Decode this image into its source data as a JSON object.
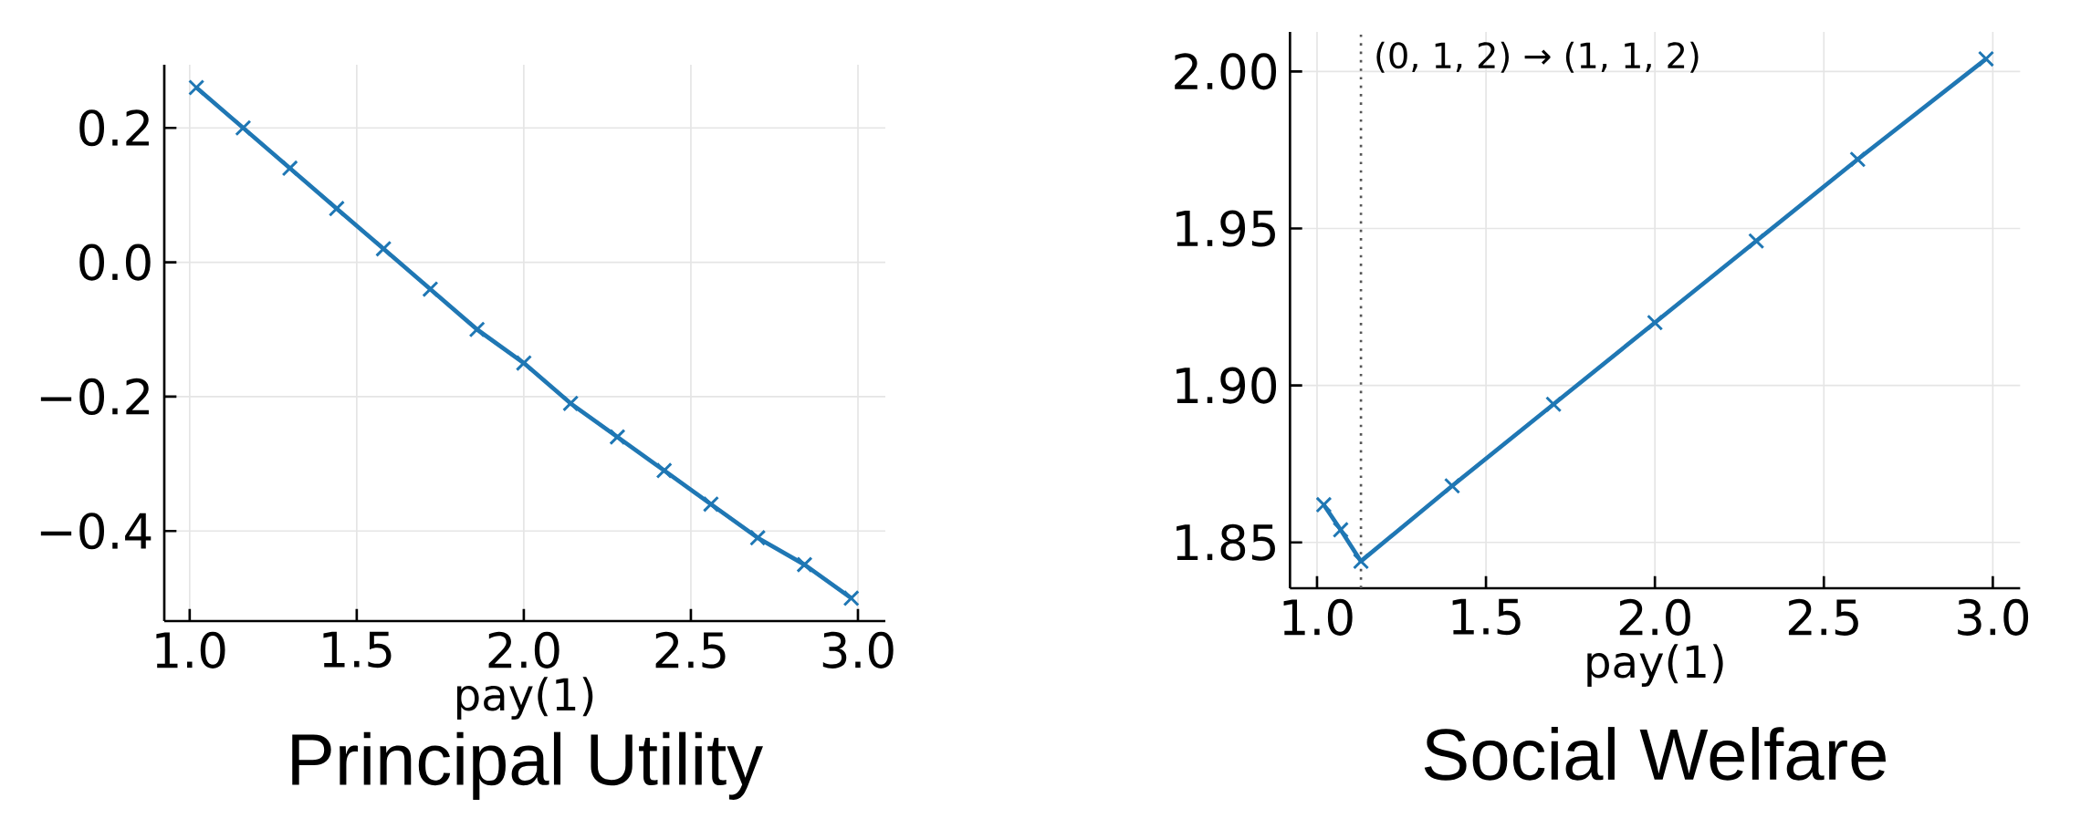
{
  "chart_data": [
    {
      "type": "line",
      "title": "Principal Utility",
      "xlabel": "pay(1)",
      "color": "#1f77b4",
      "marker": "cross",
      "line_style": "solid",
      "grid": true,
      "x": [
        1.02,
        1.16,
        1.3,
        1.44,
        1.58,
        1.72,
        1.86,
        2.0,
        2.14,
        2.28,
        2.42,
        2.56,
        2.7,
        2.84,
        2.98
      ],
      "values": [
        0.26,
        0.2,
        0.14,
        0.08,
        0.02,
        -0.04,
        -0.1,
        -0.15,
        -0.21,
        -0.26,
        -0.31,
        -0.36,
        -0.41,
        -0.45,
        -0.5
      ],
      "xlim": [
        0.924,
        3.082
      ],
      "ylim": [
        -0.534,
        0.294
      ],
      "xticks": [
        {
          "value": 1,
          "label": "1.0"
        },
        {
          "value": 1.5,
          "label": "1.5"
        },
        {
          "value": 2,
          "label": "2.0"
        },
        {
          "value": 2.5,
          "label": "2.5"
        },
        {
          "value": 3,
          "label": "3.0"
        }
      ],
      "yticks": [
        {
          "value": -0.4,
          "label": "−0.4"
        },
        {
          "value": -0.2,
          "label": "−0.2"
        },
        {
          "value": 0,
          "label": "0.0"
        },
        {
          "value": 0.2,
          "label": "0.2"
        }
      ]
    },
    {
      "type": "line",
      "title": "Social Welfare",
      "xlabel": "pay(1)",
      "color": "#1f77b4",
      "marker": "cross",
      "line_style": "solid",
      "grid": true,
      "x": [
        1.02,
        1.07,
        1.13,
        1.4,
        1.7,
        2.0,
        2.3,
        2.6,
        2.98
      ],
      "values": [
        1.862,
        1.854,
        1.844,
        1.868,
        1.894,
        1.92,
        1.946,
        1.972,
        2.004
      ],
      "xlim": [
        0.92,
        3.081
      ],
      "ylim": [
        1.8354,
        2.0126
      ],
      "xticks": [
        {
          "value": 1,
          "label": "1.0"
        },
        {
          "value": 1.5,
          "label": "1.5"
        },
        {
          "value": 2,
          "label": "2.0"
        },
        {
          "value": 2.5,
          "label": "2.5"
        },
        {
          "value": 3,
          "label": "3.0"
        }
      ],
      "yticks": [
        {
          "value": 1.85,
          "label": "1.85"
        },
        {
          "value": 1.9,
          "label": "1.90"
        },
        {
          "value": 1.95,
          "label": "1.95"
        },
        {
          "value": 2,
          "label": "2.00"
        }
      ],
      "ref_lines": [
        {
          "axis": "x",
          "value": 1.13,
          "label": "(0, 1, 2) → (1, 1, 2)",
          "color": "#555555",
          "line_style": "dotted"
        }
      ]
    }
  ]
}
